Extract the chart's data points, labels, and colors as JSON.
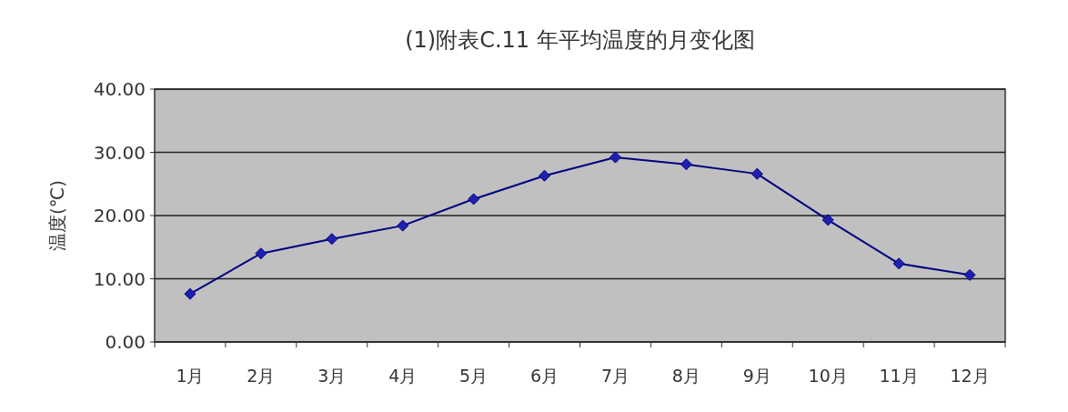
{
  "chart_data": {
    "type": "line",
    "title": "(1)附表C.11 年平均温度的月变化图",
    "ylabel": "温度(℃)",
    "categories": [
      "1月",
      "2月",
      "3月",
      "4月",
      "5月",
      "6月",
      "7月",
      "8月",
      "9月",
      "10月",
      "11月",
      "12月"
    ],
    "values": [
      7.6,
      14.0,
      16.3,
      18.4,
      22.6,
      26.3,
      29.2,
      28.1,
      26.6,
      19.3,
      12.4,
      10.6
    ],
    "color": "#000080",
    "marker": "diamond",
    "grid": "y",
    "ylim": [
      0,
      40
    ],
    "yticks": [
      {
        "value": 0,
        "label": "0.00"
      },
      {
        "value": 10,
        "label": "10.00"
      },
      {
        "value": 20,
        "label": "20.00"
      },
      {
        "value": 30,
        "label": "30.00"
      },
      {
        "value": 40,
        "label": "40.00"
      }
    ]
  }
}
